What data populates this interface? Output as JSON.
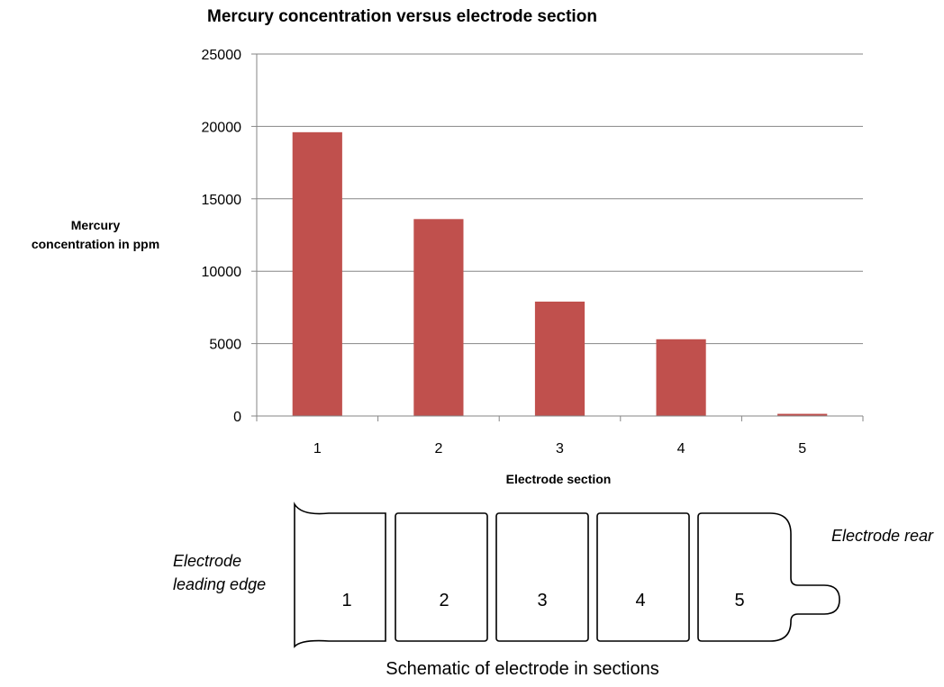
{
  "chart_data": {
    "type": "bar",
    "title": "Mercury concentration versus electrode section",
    "ylabel_line1": "Mercury",
    "ylabel_line2": "concentration in  ppm",
    "xlabel": "Electrode section",
    "categories": [
      "1",
      "2",
      "3",
      "4",
      "5"
    ],
    "values": [
      19600,
      13600,
      7900,
      5300,
      150
    ],
    "ylim": [
      0,
      25000
    ],
    "yticks": [
      "0",
      "5000",
      "10000",
      "15000",
      "20000",
      "25000"
    ],
    "grid": true,
    "legend": "none",
    "bar_color": "#c0504d",
    "grid_color": "#868686"
  },
  "schematic": {
    "leading_edge_line1": "Electrode",
    "leading_edge_line2": "leading edge",
    "rear_label": "Electrode rear",
    "sections": [
      "1",
      "2",
      "3",
      "4",
      "5"
    ],
    "caption": "Schematic of electrode in sections"
  }
}
